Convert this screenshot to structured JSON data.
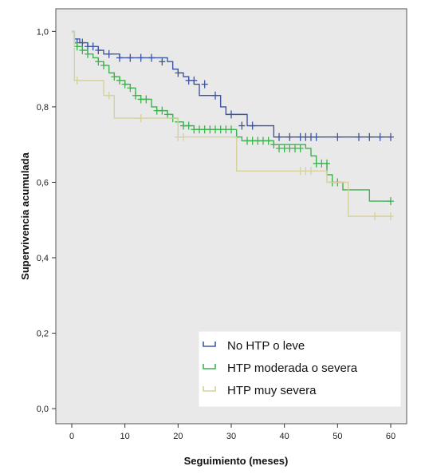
{
  "chart_data": {
    "type": "line",
    "xlabel": "Seguimiento (meses)",
    "ylabel": "Supervivencia acumulada",
    "xlim": [
      -3,
      63
    ],
    "ylim": [
      -0.04,
      1.06
    ],
    "xticks": [
      0,
      10,
      20,
      30,
      40,
      50,
      60
    ],
    "xtick_labels": [
      "0",
      "10",
      "20",
      "30",
      "40",
      "50",
      "60"
    ],
    "yticks": [
      0.0,
      0.2,
      0.4,
      0.6,
      0.8,
      1.0
    ],
    "ytick_labels": [
      "0,0",
      "0,2",
      "0,4",
      "0,6",
      "0,8",
      "1,0"
    ],
    "legend_placement": "bottom-right",
    "background": "#e9e9e9",
    "series": [
      {
        "name": "No HTP o leve",
        "color": "#3c56a4",
        "steps": [
          [
            0,
            1.0
          ],
          [
            0.5,
            0.98
          ],
          [
            1.5,
            0.97
          ],
          [
            3,
            0.96
          ],
          [
            5,
            0.95
          ],
          [
            6,
            0.94
          ],
          [
            9,
            0.93
          ],
          [
            18,
            0.92
          ],
          [
            19,
            0.9
          ],
          [
            20,
            0.89
          ],
          [
            21,
            0.88
          ],
          [
            22,
            0.87
          ],
          [
            23,
            0.86
          ],
          [
            24,
            0.83
          ],
          [
            28,
            0.8
          ],
          [
            29,
            0.78
          ],
          [
            33,
            0.75
          ],
          [
            38,
            0.72
          ],
          [
            60,
            0.72
          ]
        ],
        "censor": [
          [
            1,
            0.97
          ],
          [
            2,
            0.97
          ],
          [
            3,
            0.96
          ],
          [
            4,
            0.96
          ],
          [
            5,
            0.95
          ],
          [
            7,
            0.94
          ],
          [
            9,
            0.93
          ],
          [
            11,
            0.93
          ],
          [
            13,
            0.93
          ],
          [
            15,
            0.93
          ],
          [
            17,
            0.92
          ],
          [
            20,
            0.89
          ],
          [
            22,
            0.87
          ],
          [
            23,
            0.87
          ],
          [
            25,
            0.86
          ],
          [
            27,
            0.83
          ],
          [
            30,
            0.78
          ],
          [
            32,
            0.75
          ],
          [
            34,
            0.75
          ],
          [
            39,
            0.72
          ],
          [
            41,
            0.72
          ],
          [
            43,
            0.72
          ],
          [
            44,
            0.72
          ],
          [
            45,
            0.72
          ],
          [
            46,
            0.72
          ],
          [
            50,
            0.72
          ],
          [
            54,
            0.72
          ],
          [
            56,
            0.72
          ],
          [
            58,
            0.72
          ],
          [
            60,
            0.72
          ]
        ]
      },
      {
        "name": "HTP moderada o severa",
        "color": "#3fb24f",
        "steps": [
          [
            0,
            1.0
          ],
          [
            0.5,
            0.97
          ],
          [
            1,
            0.96
          ],
          [
            2,
            0.95
          ],
          [
            3,
            0.94
          ],
          [
            4,
            0.93
          ],
          [
            5,
            0.92
          ],
          [
            6,
            0.91
          ],
          [
            7,
            0.89
          ],
          [
            8,
            0.88
          ],
          [
            9,
            0.87
          ],
          [
            10,
            0.86
          ],
          [
            11,
            0.85
          ],
          [
            12,
            0.83
          ],
          [
            13,
            0.82
          ],
          [
            15,
            0.8
          ],
          [
            16,
            0.79
          ],
          [
            18,
            0.78
          ],
          [
            19,
            0.77
          ],
          [
            20,
            0.76
          ],
          [
            21,
            0.75
          ],
          [
            23,
            0.74
          ],
          [
            31,
            0.72
          ],
          [
            32,
            0.71
          ],
          [
            38,
            0.7
          ],
          [
            44,
            0.69
          ],
          [
            45,
            0.67
          ],
          [
            46,
            0.65
          ],
          [
            48,
            0.62
          ],
          [
            49,
            0.6
          ],
          [
            51,
            0.58
          ],
          [
            56,
            0.55
          ],
          [
            60,
            0.55
          ]
        ],
        "censor": [
          [
            1,
            0.96
          ],
          [
            2,
            0.95
          ],
          [
            3,
            0.94
          ],
          [
            5,
            0.92
          ],
          [
            6,
            0.91
          ],
          [
            8,
            0.88
          ],
          [
            9,
            0.87
          ],
          [
            10,
            0.86
          ],
          [
            11,
            0.85
          ],
          [
            12,
            0.83
          ],
          [
            13,
            0.82
          ],
          [
            14,
            0.82
          ],
          [
            16,
            0.79
          ],
          [
            17,
            0.79
          ],
          [
            18,
            0.78
          ],
          [
            19,
            0.77
          ],
          [
            20,
            0.76
          ],
          [
            21,
            0.75
          ],
          [
            22,
            0.75
          ],
          [
            23,
            0.74
          ],
          [
            24,
            0.74
          ],
          [
            25,
            0.74
          ],
          [
            26,
            0.74
          ],
          [
            27,
            0.74
          ],
          [
            28,
            0.74
          ],
          [
            29,
            0.74
          ],
          [
            30,
            0.74
          ],
          [
            31,
            0.72
          ],
          [
            33,
            0.71
          ],
          [
            34,
            0.71
          ],
          [
            35,
            0.71
          ],
          [
            36,
            0.71
          ],
          [
            37,
            0.71
          ],
          [
            38,
            0.7
          ],
          [
            39,
            0.69
          ],
          [
            40,
            0.69
          ],
          [
            41,
            0.69
          ],
          [
            42,
            0.69
          ],
          [
            43,
            0.69
          ],
          [
            46,
            0.65
          ],
          [
            47,
            0.65
          ],
          [
            48,
            0.65
          ],
          [
            49,
            0.6
          ],
          [
            50,
            0.6
          ],
          [
            60,
            0.55
          ]
        ]
      },
      {
        "name": "HTP muy severa",
        "color": "#d6d19d",
        "steps": [
          [
            0,
            1.0
          ],
          [
            0.5,
            0.87
          ],
          [
            6,
            0.83
          ],
          [
            8,
            0.77
          ],
          [
            20,
            0.72
          ],
          [
            31,
            0.63
          ],
          [
            48,
            0.6
          ],
          [
            52,
            0.51
          ],
          [
            60,
            0.51
          ]
        ],
        "censor": [
          [
            1,
            0.87
          ],
          [
            7,
            0.83
          ],
          [
            13,
            0.77
          ],
          [
            20,
            0.72
          ],
          [
            21,
            0.72
          ],
          [
            43,
            0.63
          ],
          [
            44,
            0.63
          ],
          [
            45,
            0.63
          ],
          [
            57,
            0.51
          ],
          [
            60,
            0.51
          ]
        ]
      }
    ]
  }
}
